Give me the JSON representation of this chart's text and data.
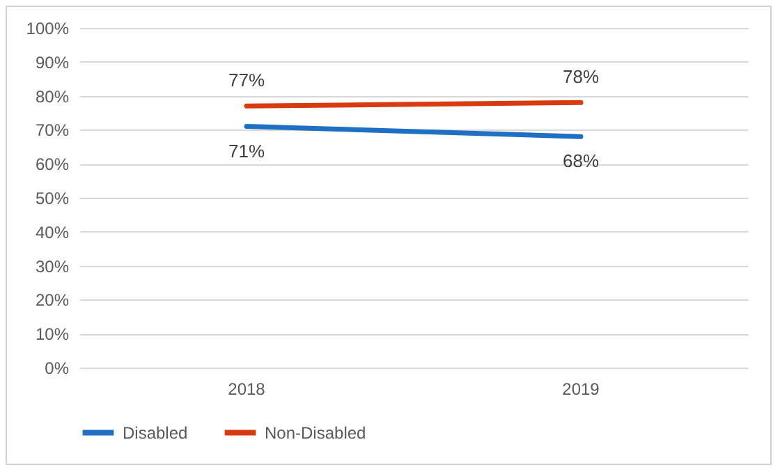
{
  "chart_data": {
    "type": "line",
    "categories": [
      "2018",
      "2019"
    ],
    "series": [
      {
        "name": "Disabled",
        "color": "#1f6fc5",
        "values": [
          71,
          68
        ],
        "value_labels": [
          "71%",
          "68%"
        ]
      },
      {
        "name": "Non-Disabled",
        "color": "#d83b10",
        "values": [
          77,
          78
        ],
        "value_labels": [
          "77%",
          "78%"
        ]
      }
    ],
    "ylim": [
      0,
      100
    ],
    "yticks": [
      {
        "value": 0,
        "label": "0%"
      },
      {
        "value": 10,
        "label": "10%"
      },
      {
        "value": 20,
        "label": "20%"
      },
      {
        "value": 30,
        "label": "30%"
      },
      {
        "value": 40,
        "label": "40%"
      },
      {
        "value": 50,
        "label": "50%"
      },
      {
        "value": 60,
        "label": "60%"
      },
      {
        "value": 70,
        "label": "70%"
      },
      {
        "value": 80,
        "label": "80%"
      },
      {
        "value": 90,
        "label": "90%"
      },
      {
        "value": 100,
        "label": "100%"
      }
    ],
    "grid": true,
    "legend": "bottom",
    "marker": "none",
    "line_style": "solid"
  }
}
